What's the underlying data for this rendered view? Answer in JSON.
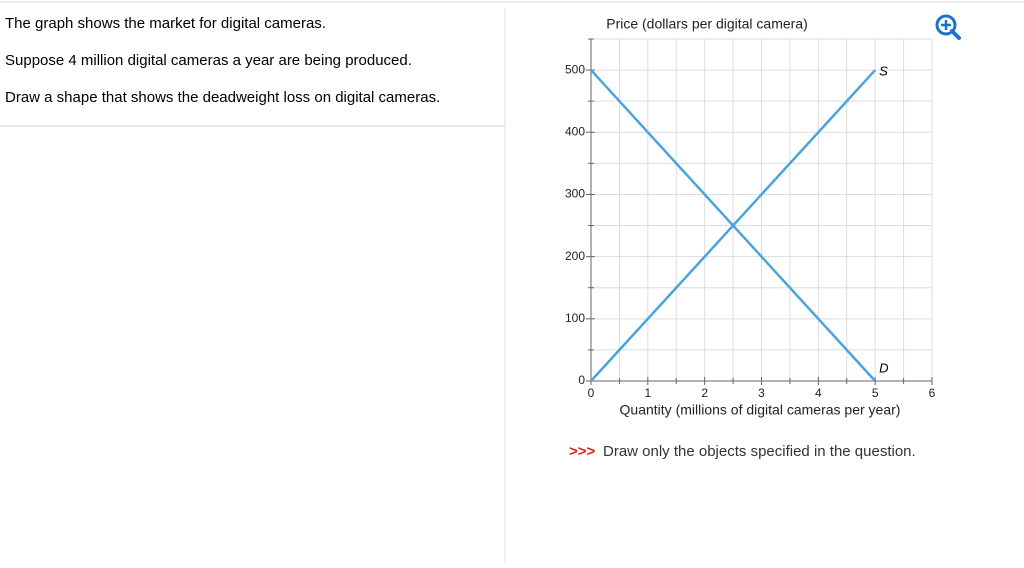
{
  "question": {
    "lines": [
      "The graph shows the market for digital cameras.",
      "Suppose 4 million digital cameras a year are being produced.",
      "Draw a shape that shows the deadweight loss on digital cameras."
    ]
  },
  "chart_data": {
    "type": "line",
    "y_label": "Price (dollars per digital camera)",
    "x_label": "Quantity (millions of digital cameras per year)",
    "xlim": [
      0,
      6
    ],
    "ylim": [
      0,
      550
    ],
    "xticks": [
      0,
      1,
      2,
      3,
      4,
      5,
      6
    ],
    "yticks": [
      0,
      100,
      200,
      300,
      400,
      500
    ],
    "x_minor_ticks": [
      0.5,
      1.5,
      2.5,
      3.5,
      4.5,
      5.5
    ],
    "y_minor_ticks": [
      50,
      150,
      250,
      350,
      450,
      550
    ],
    "grid": true,
    "series": [
      {
        "name": "S",
        "color": "#4aa3df",
        "x": [
          0,
          5
        ],
        "values": [
          0,
          500
        ]
      },
      {
        "name": "D",
        "color": "#4aa3df",
        "x": [
          0,
          5
        ],
        "values": [
          500,
          0
        ]
      }
    ]
  },
  "note": {
    "prefix": ">>>",
    "text": "Draw only the objects specified in the question."
  }
}
